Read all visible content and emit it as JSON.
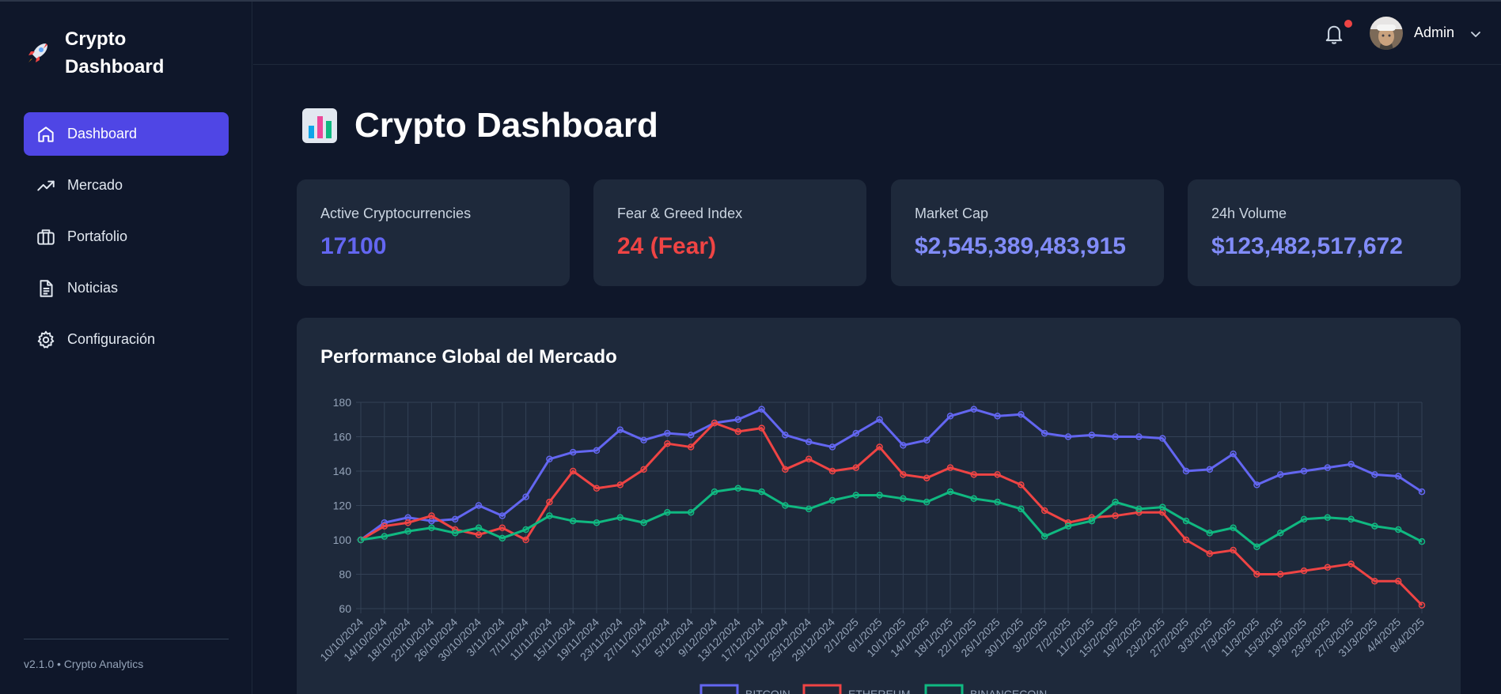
{
  "sidebar": {
    "brand": "Crypto Dashboard",
    "items": [
      {
        "label": "Dashboard",
        "icon": "home-icon",
        "active": true
      },
      {
        "label": "Mercado",
        "icon": "trending-up-icon"
      },
      {
        "label": "Portafolio",
        "icon": "briefcase-icon"
      },
      {
        "label": "Noticias",
        "icon": "document-icon"
      },
      {
        "label": "Configuración",
        "icon": "gear-icon"
      }
    ],
    "version": "v2.1.0 • Crypto Analytics"
  },
  "header": {
    "user_name": "Admin"
  },
  "main": {
    "title": "Crypto Dashboard",
    "cards": [
      {
        "label": "Active Cryptocurrencies",
        "value": "17100",
        "color": "#6366f1"
      },
      {
        "label": "Fear & Greed Index",
        "value": "24 (Fear)",
        "color": "#ef4444"
      },
      {
        "label": "Market Cap",
        "value": "$2,545,389,483,915",
        "color": "#818cf8"
      },
      {
        "label": "24h Volume",
        "value": "$123,482,517,672",
        "color": "#818cf8"
      }
    ]
  },
  "colors": {
    "accent": "#4f46e5",
    "bitcoin": "#6366f1",
    "ethereum": "#ef4444",
    "binancecoin": "#10b981"
  },
  "chart_data": {
    "type": "line",
    "title": "Performance Global del Mercado",
    "ylim": [
      60,
      180
    ],
    "yticks": [
      60,
      80,
      100,
      120,
      140,
      160,
      180
    ],
    "grid": true,
    "legend_position": "bottom",
    "x": [
      "10/10/2024",
      "14/10/2024",
      "18/10/2024",
      "22/10/2024",
      "26/10/2024",
      "30/10/2024",
      "3/11/2024",
      "7/11/2024",
      "11/11/2024",
      "15/11/2024",
      "19/11/2024",
      "23/11/2024",
      "27/11/2024",
      "1/12/2024",
      "5/12/2024",
      "9/12/2024",
      "13/12/2024",
      "17/12/2024",
      "21/12/2024",
      "25/12/2024",
      "29/12/2024",
      "2/1/2025",
      "6/1/2025",
      "10/1/2025",
      "14/1/2025",
      "18/1/2025",
      "22/1/2025",
      "26/1/2025",
      "30/1/2025",
      "3/2/2025",
      "7/2/2025",
      "11/2/2025",
      "15/2/2025",
      "19/2/2025",
      "23/2/2025",
      "27/2/2025",
      "3/3/2025",
      "7/3/2025",
      "11/3/2025",
      "15/3/2025",
      "19/3/2025",
      "23/3/2025",
      "27/3/2025",
      "31/3/2025",
      "4/4/2025",
      "8/4/2025"
    ],
    "series": [
      {
        "name": "BITCOIN",
        "color": "#6366f1",
        "values": [
          100,
          110,
          113,
          111,
          112,
          120,
          114,
          125,
          147,
          151,
          152,
          164,
          158,
          162,
          161,
          168,
          170,
          176,
          161,
          157,
          154,
          162,
          170,
          155,
          158,
          172,
          176,
          172,
          173,
          162,
          160,
          161,
          160,
          160,
          159,
          140,
          141,
          150,
          132,
          138,
          140,
          142,
          144,
          138,
          137,
          128
        ]
      },
      {
        "name": "ETHEREUM",
        "color": "#ef4444",
        "values": [
          100,
          108,
          110,
          114,
          106,
          103,
          107,
          100,
          122,
          140,
          130,
          132,
          141,
          156,
          154,
          168,
          163,
          165,
          141,
          147,
          140,
          142,
          154,
          138,
          136,
          142,
          138,
          138,
          132,
          117,
          110,
          113,
          114,
          116,
          116,
          100,
          92,
          94,
          80,
          80,
          82,
          84,
          86,
          76,
          76,
          62
        ]
      },
      {
        "name": "BINANCECOIN",
        "color": "#10b981",
        "values": [
          100,
          102,
          105,
          107,
          104,
          107,
          101,
          106,
          114,
          111,
          110,
          113,
          110,
          116,
          116,
          128,
          130,
          128,
          120,
          118,
          123,
          126,
          126,
          124,
          122,
          128,
          124,
          122,
          118,
          102,
          108,
          111,
          122,
          118,
          119,
          111,
          104,
          107,
          96,
          104,
          112,
          113,
          112,
          108,
          106,
          99
        ]
      }
    ]
  }
}
